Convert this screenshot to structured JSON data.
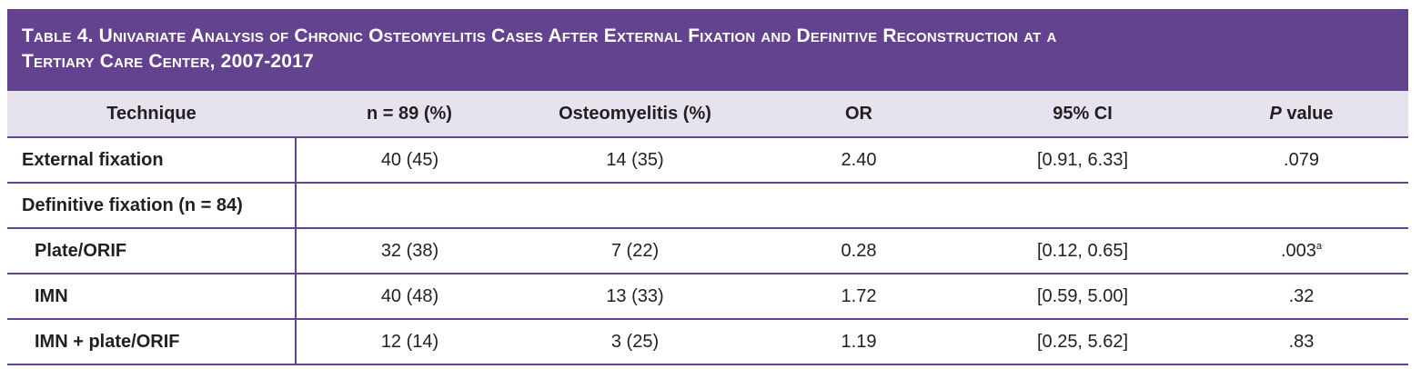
{
  "title": {
    "line1": "Table 4.  Univariate Analysis of Chronic Osteomyelitis Cases After External Fixation and Definitive Reconstruction at a",
    "line2": "Tertiary Care Center,  2007-2017"
  },
  "headers": {
    "technique": "Technique",
    "n": "n = 89 (%)",
    "osteomyelitis": "Osteomyelitis (%)",
    "or": "OR",
    "ci": "95% CI",
    "p_italic": "P",
    "p_rest": " value"
  },
  "rows": [
    {
      "label": "External fixation",
      "n": "40 (45)",
      "osteo": "14 (35)",
      "or": "2.40",
      "ci": "[0.91, 6.33]",
      "p": ".079",
      "sup": ""
    },
    {
      "label": "Definitive fixation (n = 84)",
      "n": "",
      "osteo": "",
      "or": "",
      "ci": "",
      "p": "",
      "sup": ""
    },
    {
      "label": "Plate/ORIF",
      "n": "32 (38)",
      "osteo": "7 (22)",
      "or": "0.28",
      "ci": "[0.12, 0.65]",
      "p": ".003",
      "sup": "a"
    },
    {
      "label": "IMN",
      "n": "40 (48)",
      "osteo": "13 (33)",
      "or": "1.72",
      "ci": "[0.59, 5.00]",
      "p": ".32",
      "sup": ""
    },
    {
      "label": "IMN + plate/ORIF",
      "n": "12 (14)",
      "osteo": "3 (25)",
      "or": "1.19",
      "ci": "[0.25, 5.62]",
      "p": ".83",
      "sup": ""
    }
  ],
  "colors": {
    "title_bg": "#63438f",
    "header_bg": "#e6e2ee",
    "rule": "#63438f"
  }
}
